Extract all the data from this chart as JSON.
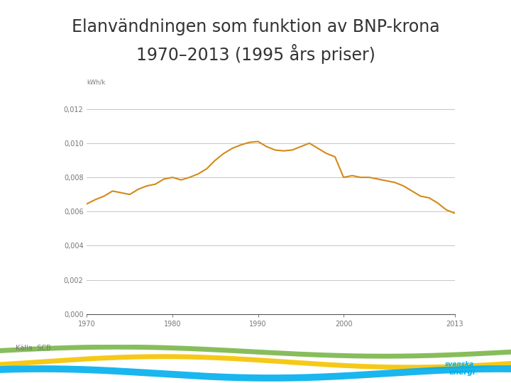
{
  "title_line1": "Elanvändningen som funktion av BNP-krona",
  "title_line2": "1970–2013 (1995 års priser)",
  "source": "Källa: SCB",
  "ylabel": "kWh/k",
  "line_color": "#D4891A",
  "line_width": 1.5,
  "background_color": "#ffffff",
  "xlim": [
    1970,
    2013
  ],
  "ylim": [
    0,
    0.013
  ],
  "yticks": [
    0.0,
    0.002,
    0.004,
    0.006,
    0.008,
    0.01,
    0.012
  ],
  "ytick_labels": [
    "0,000",
    "0,002",
    "0,004",
    "0,006",
    "0,008",
    "0,010",
    "0,012"
  ],
  "xticks": [
    1970,
    1980,
    1990,
    2000,
    2013
  ],
  "years": [
    1970,
    1971,
    1972,
    1973,
    1974,
    1975,
    1976,
    1977,
    1978,
    1979,
    1980,
    1981,
    1982,
    1983,
    1984,
    1985,
    1986,
    1987,
    1988,
    1989,
    1990,
    1991,
    1992,
    1993,
    1994,
    1995,
    1996,
    1997,
    1998,
    1999,
    2000,
    2001,
    2002,
    2003,
    2004,
    2005,
    2006,
    2007,
    2008,
    2009,
    2010,
    2011,
    2012,
    2013
  ],
  "values": [
    0.00645,
    0.0067,
    0.0069,
    0.0072,
    0.0071,
    0.007,
    0.0073,
    0.0075,
    0.0076,
    0.0079,
    0.008,
    0.00785,
    0.008,
    0.0082,
    0.0085,
    0.009,
    0.0094,
    0.0097,
    0.0099,
    0.01005,
    0.0101,
    0.0098,
    0.0096,
    0.00955,
    0.0096,
    0.0098,
    0.01,
    0.0097,
    0.0094,
    0.0092,
    0.008,
    0.0081,
    0.008,
    0.008,
    0.0079,
    0.0078,
    0.0077,
    0.0075,
    0.0072,
    0.0069,
    0.0068,
    0.0065,
    0.0061,
    0.0059
  ],
  "grid_color": "#bbbbbb",
  "title_fontsize": 17,
  "source_fontsize": 7,
  "tick_fontsize": 7,
  "wave_colors": [
    "#7AB648",
    "#F5C400",
    "#00AEEF"
  ],
  "logo_color": "#00AEEF"
}
